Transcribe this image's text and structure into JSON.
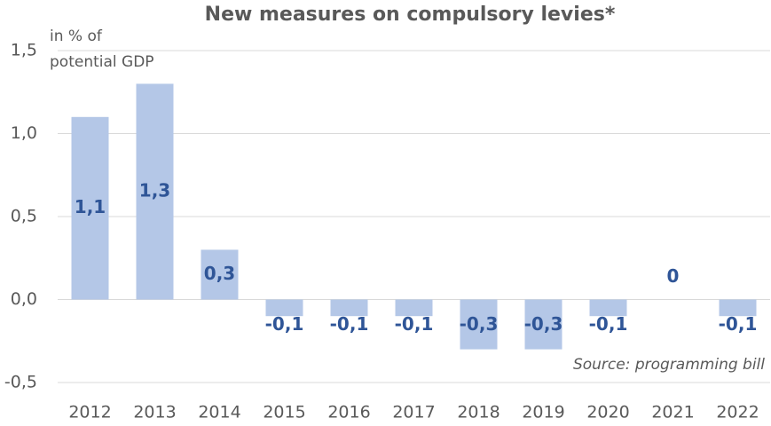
{
  "chart_data": {
    "type": "bar",
    "title": "New measures on compulsory levies*",
    "ylabel": [
      "in % of",
      "potential GDP"
    ],
    "annotation": "Source: programming bill",
    "categories": [
      "2012",
      "2013",
      "2014",
      "2015",
      "2016",
      "2017",
      "2018",
      "2019",
      "2020",
      "2021",
      "2022"
    ],
    "values": [
      1.1,
      1.3,
      0.3,
      -0.1,
      -0.1,
      -0.1,
      -0.3,
      -0.3,
      -0.1,
      0,
      -0.1
    ],
    "value_labels": [
      "1,1",
      "1,3",
      "0,3",
      "-0,1",
      "-0,1",
      "-0,1",
      "-0,3",
      "-0,3",
      "-0,1",
      "0",
      "-0,1"
    ],
    "color": "#b4c7e7",
    "label_color": "#2f5597",
    "ylim": [
      -0.5,
      1.5
    ],
    "yticks": [
      {
        "value": -0.5,
        "label": "-0,5"
      },
      {
        "value": 0,
        "label": "0,0"
      },
      {
        "value": 0.5,
        "label": "0,5"
      },
      {
        "value": 1,
        "label": "1,0"
      },
      {
        "value": 1.5,
        "label": "1,5"
      }
    ],
    "grid": true
  }
}
